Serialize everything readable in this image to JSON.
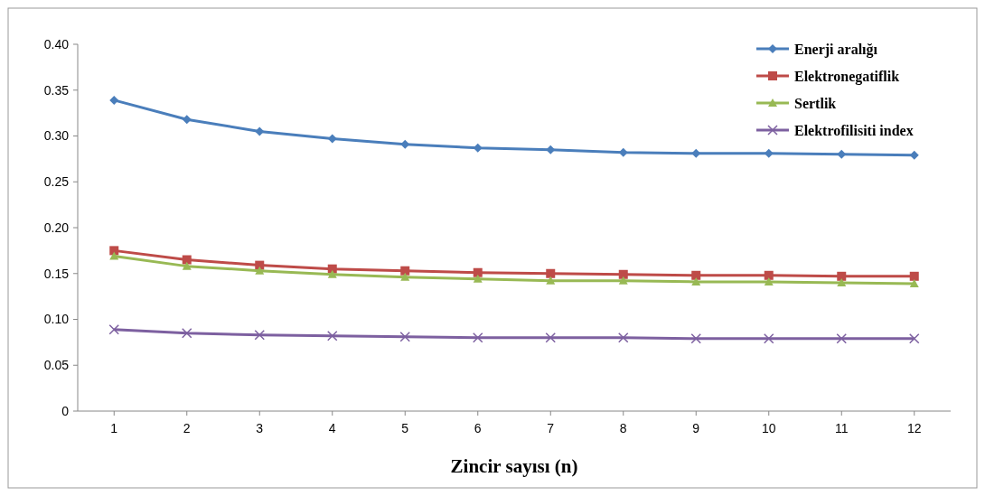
{
  "chart_data": {
    "type": "line",
    "xlabel": "Zincir sayısı (n)",
    "x": [
      1,
      2,
      3,
      4,
      5,
      6,
      7,
      8,
      9,
      10,
      11,
      12
    ],
    "xlim": [
      0.5,
      12.5
    ],
    "xticks": [
      1,
      2,
      3,
      4,
      5,
      6,
      7,
      8,
      9,
      10,
      11,
      12
    ],
    "ylim": [
      0,
      0.4
    ],
    "yticks": [
      {
        "value": 0,
        "label": "0"
      },
      {
        "value": 0.05,
        "label": "0.05"
      },
      {
        "value": 0.1,
        "label": "0.10"
      },
      {
        "value": 0.15,
        "label": "0.15"
      },
      {
        "value": 0.2,
        "label": "0.20"
      },
      {
        "value": 0.25,
        "label": "0.25"
      },
      {
        "value": 0.3,
        "label": "0.30"
      },
      {
        "value": 0.35,
        "label": "0.35"
      },
      {
        "value": 0.4,
        "label": "0.40"
      }
    ],
    "grid": false,
    "legend": "top right",
    "series": [
      {
        "name": "Enerji aralığı",
        "color": "#4a7ebb",
        "marker": "diamond",
        "values": [
          0.339,
          0.318,
          0.305,
          0.297,
          0.291,
          0.287,
          0.285,
          0.282,
          0.281,
          0.281,
          0.28,
          0.279
        ]
      },
      {
        "name": "Elektronegatiflik",
        "color": "#be4b48",
        "marker": "square",
        "values": [
          0.175,
          0.165,
          0.159,
          0.155,
          0.153,
          0.151,
          0.15,
          0.149,
          0.148,
          0.148,
          0.147,
          0.147
        ]
      },
      {
        "name": "Sertlik",
        "color": "#98b954",
        "marker": "triangle",
        "values": [
          0.169,
          0.158,
          0.153,
          0.149,
          0.146,
          0.144,
          0.142,
          0.142,
          0.141,
          0.141,
          0.14,
          0.139
        ]
      },
      {
        "name": "Elektrofilisiti index",
        "color": "#7d60a0",
        "marker": "cross",
        "values": [
          0.089,
          0.085,
          0.083,
          0.082,
          0.081,
          0.08,
          0.08,
          0.08,
          0.079,
          0.079,
          0.079,
          0.079
        ]
      }
    ]
  }
}
